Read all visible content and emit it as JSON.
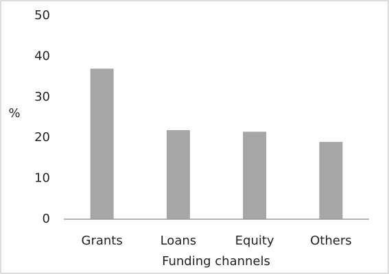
{
  "chart_data": {
    "type": "bar",
    "x_label": "Funding channels",
    "y_label": "%",
    "categories": [
      "Grants",
      "Loans",
      "Equity",
      "Others"
    ],
    "values": [
      37,
      21.9,
      21.5,
      19
    ],
    "color": "#a6a6a6",
    "ylim": [
      0,
      50
    ],
    "yticks": [
      0,
      10,
      20,
      30,
      40,
      50
    ],
    "grid": false
  }
}
